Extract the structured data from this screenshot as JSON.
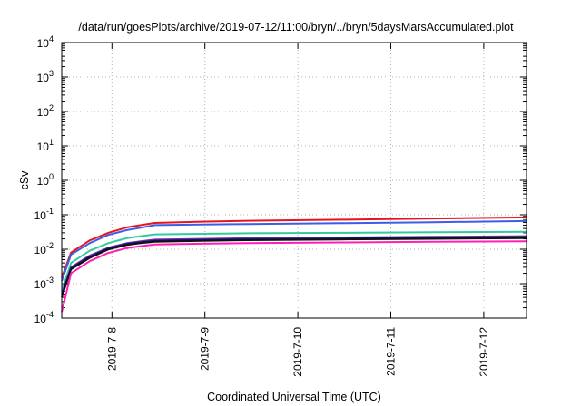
{
  "chart_data": {
    "type": "line",
    "title": "/data/run/goesPlots/archive/2019-07-12/11:00/bryn/../bryn/5daysMarsAccumulated.plot",
    "xlabel": "Coordinated Universal Time (UTC)",
    "ylabel": "cSv",
    "yscale": "log",
    "ylim": [
      0.0001,
      10000
    ],
    "y_ticks": [
      {
        "value": 0.0001,
        "base": "10",
        "exp": "-4"
      },
      {
        "value": 0.001,
        "base": "10",
        "exp": "-3"
      },
      {
        "value": 0.01,
        "base": "10",
        "exp": "-2"
      },
      {
        "value": 0.1,
        "base": "10",
        "exp": "-1"
      },
      {
        "value": 1,
        "base": "10",
        "exp": "0"
      },
      {
        "value": 10,
        "base": "10",
        "exp": "1"
      },
      {
        "value": 100,
        "base": "10",
        "exp": "2"
      },
      {
        "value": 1000,
        "base": "10",
        "exp": "3"
      },
      {
        "value": 10000,
        "base": "10",
        "exp": "4"
      }
    ],
    "xlim": [
      "2019-07-07 11:00",
      "2019-07-12 11:00"
    ],
    "x_ticks": [
      "2019-7-8",
      "2019-7-9",
      "2019-7-10",
      "2019-7-11",
      "2019-7-12"
    ],
    "x_tick_days": [
      0.54,
      1.54,
      2.54,
      3.54,
      4.54
    ],
    "grid": true,
    "series": [
      {
        "color": "#e8131f",
        "x": [
          0,
          0.1,
          0.3,
          0.5,
          0.7,
          0.85,
          1.0,
          1.5,
          2.0,
          3.0,
          4.0,
          5.0
        ],
        "values": [
          0.0015,
          0.008,
          0.018,
          0.03,
          0.043,
          0.05,
          0.058,
          0.063,
          0.067,
          0.072,
          0.078,
          0.084
        ]
      },
      {
        "color": "#3a5fe6",
        "x": [
          0,
          0.1,
          0.3,
          0.5,
          0.7,
          0.85,
          1.0,
          1.5,
          2.0,
          3.0,
          4.0,
          5.0
        ],
        "values": [
          0.0012,
          0.007,
          0.015,
          0.026,
          0.036,
          0.042,
          0.05,
          0.052,
          0.054,
          0.057,
          0.061,
          0.066
        ]
      },
      {
        "color": "#2fcc9f",
        "x": [
          0,
          0.1,
          0.3,
          0.5,
          0.7,
          0.85,
          1.0,
          1.5,
          2.0,
          3.0,
          4.0,
          5.0
        ],
        "values": [
          0.0006,
          0.004,
          0.009,
          0.015,
          0.021,
          0.024,
          0.027,
          0.028,
          0.029,
          0.03,
          0.031,
          0.032
        ]
      },
      {
        "color": "#7a2aa8",
        "x": [
          0,
          0.1,
          0.3,
          0.5,
          0.7,
          0.85,
          1.0,
          1.5,
          2.0,
          3.0,
          4.0,
          5.0
        ],
        "values": [
          0.0005,
          0.003,
          0.0065,
          0.011,
          0.015,
          0.017,
          0.019,
          0.02,
          0.021,
          0.022,
          0.023,
          0.024
        ]
      },
      {
        "color": "#0a1a6e",
        "x": [
          0,
          0.1,
          0.3,
          0.5,
          0.7,
          0.85,
          1.0,
          1.5,
          2.0,
          3.0,
          4.0,
          5.0
        ],
        "values": [
          0.00045,
          0.0028,
          0.006,
          0.0105,
          0.0142,
          0.016,
          0.0175,
          0.0185,
          0.0195,
          0.0205,
          0.0215,
          0.0225
        ]
      },
      {
        "color": "#111111",
        "x": [
          0,
          0.1,
          0.3,
          0.5,
          0.7,
          0.85,
          1.0,
          1.5,
          2.0,
          3.0,
          4.0,
          5.0
        ],
        "values": [
          0.0004,
          0.0026,
          0.0056,
          0.0098,
          0.0133,
          0.015,
          0.0165,
          0.0175,
          0.0183,
          0.0192,
          0.0201,
          0.021
        ]
      },
      {
        "color": "#ff1fb5",
        "x": [
          0,
          0.1,
          0.3,
          0.5,
          0.7,
          0.85,
          1.0,
          1.5,
          2.0,
          3.0,
          4.0,
          5.0
        ],
        "values": [
          0.00015,
          0.002,
          0.0045,
          0.0078,
          0.0108,
          0.0123,
          0.0138,
          0.0145,
          0.0151,
          0.0158,
          0.0164,
          0.017
        ]
      }
    ]
  }
}
